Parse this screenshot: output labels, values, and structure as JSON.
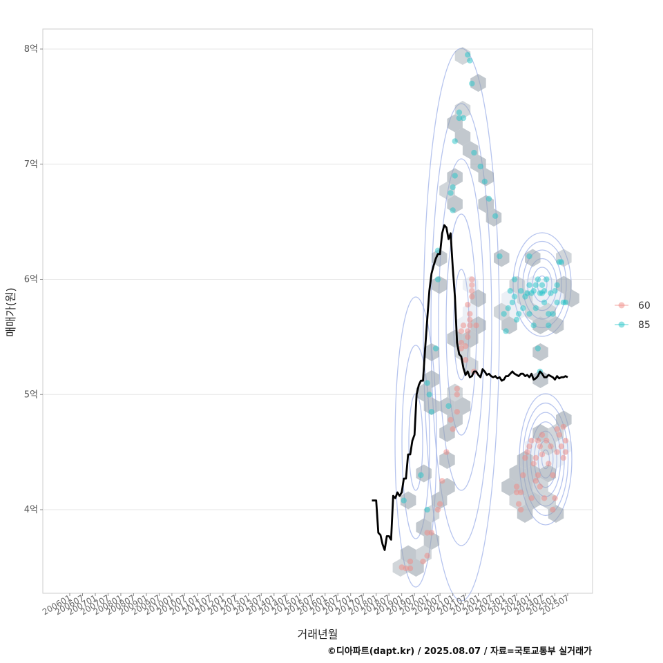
{
  "chart_data": {
    "type": "scatter",
    "title": "",
    "xlabel": "거래년월",
    "ylabel": "매매가(원)",
    "caption": "©디아파트(dapt.kr) / 2025.08.07 / 자료=국토교통부 실거래가",
    "x_ticks": [
      "200601",
      "200607",
      "200701",
      "200707",
      "200801",
      "200807",
      "200901",
      "200907",
      "201001",
      "201007",
      "201101",
      "201107",
      "201201",
      "201207",
      "201301",
      "201307",
      "201401",
      "201407",
      "201501",
      "201507",
      "201601",
      "201607",
      "201701",
      "201707",
      "201801",
      "201807",
      "201901",
      "201907",
      "202001",
      "202007",
      "202101",
      "202107",
      "202201",
      "202207",
      "202301",
      "202307",
      "202401",
      "202407",
      "202501",
      "202507"
    ],
    "y_ticks": [
      {
        "value": 4,
        "label": "4억"
      },
      {
        "value": 5,
        "label": "5억"
      },
      {
        "value": 6,
        "label": "6억"
      },
      {
        "value": 7,
        "label": "7억"
      },
      {
        "value": 8,
        "label": "8억"
      }
    ],
    "ylim": [
      3.3,
      8.17
    ],
    "grid": true,
    "legend_position": "right",
    "colors": {
      "s60": "#f08a84",
      "s85": "#22c4c8",
      "trend": "#000000",
      "contour": "#9db0e8",
      "hex": "#9aa3ad"
    },
    "series": [
      {
        "name": "60",
        "points": [
          [
            "201901",
            3.5
          ],
          [
            "201903",
            3.49
          ],
          [
            "201905",
            3.49
          ],
          [
            "201905",
            3.55
          ],
          [
            "201911",
            3.55
          ],
          [
            "202001",
            3.6
          ],
          [
            "202001",
            3.8
          ],
          [
            "202003",
            3.8
          ],
          [
            "202006",
            4.0
          ],
          [
            "202007",
            4.05
          ],
          [
            "202008",
            4.25
          ],
          [
            "202010",
            4.5
          ],
          [
            "202012",
            4.78
          ],
          [
            "202101",
            4.7
          ],
          [
            "202103",
            4.85
          ],
          [
            "202103",
            5.0
          ],
          [
            "202103",
            5.05
          ],
          [
            "202105",
            5.4
          ],
          [
            "202105",
            5.45
          ],
          [
            "202105",
            5.55
          ],
          [
            "202106",
            5.6
          ],
          [
            "202107",
            5.3
          ],
          [
            "202107",
            5.42
          ],
          [
            "202108",
            5.5
          ],
          [
            "202108",
            5.55
          ],
          [
            "202109",
            5.6
          ],
          [
            "202109",
            5.65
          ],
          [
            "202109",
            5.7
          ],
          [
            "202110",
            5.85
          ],
          [
            "202110",
            5.9
          ],
          [
            "202110",
            5.95
          ],
          [
            "202110",
            6.0
          ],
          [
            "202111",
            5.2
          ],
          [
            "202112",
            5.6
          ],
          [
            "202108",
            5.78
          ],
          [
            "202307",
            4.15
          ],
          [
            "202307",
            4.2
          ],
          [
            "202308",
            4.05
          ],
          [
            "202309",
            4.0
          ],
          [
            "202309",
            4.15
          ],
          [
            "202310",
            4.3
          ],
          [
            "202311",
            4.45
          ],
          [
            "202312",
            4.5
          ],
          [
            "202401",
            4.55
          ],
          [
            "202402",
            4.6
          ],
          [
            "202403",
            4.4
          ],
          [
            "202404",
            4.45
          ],
          [
            "202405",
            4.3
          ],
          [
            "202405",
            4.6
          ],
          [
            "202406",
            4.2
          ],
          [
            "202406",
            4.55
          ],
          [
            "202407",
            4.48
          ],
          [
            "202407",
            4.65
          ],
          [
            "202408",
            4.1
          ],
          [
            "202409",
            4.6
          ],
          [
            "202410",
            4.4
          ],
          [
            "202411",
            4.55
          ],
          [
            "202412",
            4.0
          ],
          [
            "202412",
            4.3
          ],
          [
            "202501",
            4.1
          ],
          [
            "202502",
            4.5
          ],
          [
            "202502",
            4.7
          ],
          [
            "202503",
            4.65
          ],
          [
            "202504",
            4.55
          ],
          [
            "202505",
            4.45
          ],
          [
            "202505",
            4.72
          ],
          [
            "202506",
            4.6
          ],
          [
            "202506",
            4.5
          ],
          [
            "202402",
            4.1
          ],
          [
            "202404",
            4.25
          ]
        ]
      },
      {
        "name": "85",
        "points": [
          [
            "201902",
            4.08
          ],
          [
            "201910",
            4.3
          ],
          [
            "202001",
            4.0
          ],
          [
            "202001",
            5.1
          ],
          [
            "202002",
            5.0
          ],
          [
            "202003",
            4.85
          ],
          [
            "202005",
            5.4
          ],
          [
            "202006",
            6.0
          ],
          [
            "202006",
            6.25
          ],
          [
            "202011",
            4.9
          ],
          [
            "202012",
            6.75
          ],
          [
            "202101",
            6.6
          ],
          [
            "202101",
            6.8
          ],
          [
            "202102",
            6.9
          ],
          [
            "202102",
            7.2
          ],
          [
            "202104",
            7.4
          ],
          [
            "202104",
            7.45
          ],
          [
            "202106",
            7.4
          ],
          [
            "202108",
            7.95
          ],
          [
            "202109",
            7.9
          ],
          [
            "202110",
            7.7
          ],
          [
            "202111",
            7.1
          ],
          [
            "202202",
            6.98
          ],
          [
            "202204",
            6.85
          ],
          [
            "202206",
            6.7
          ],
          [
            "202209",
            6.55
          ],
          [
            "202211",
            6.2
          ],
          [
            "202301",
            5.7
          ],
          [
            "202302",
            5.55
          ],
          [
            "202303",
            5.75
          ],
          [
            "202304",
            5.9
          ],
          [
            "202305",
            5.8
          ],
          [
            "202306",
            5.85
          ],
          [
            "202306",
            6.0
          ],
          [
            "202307",
            5.65
          ],
          [
            "202308",
            5.7
          ],
          [
            "202309",
            5.9
          ],
          [
            "202310",
            5.75
          ],
          [
            "202311",
            5.85
          ],
          [
            "202312",
            5.88
          ],
          [
            "202401",
            5.7
          ],
          [
            "202401",
            5.95
          ],
          [
            "202402",
            5.88
          ],
          [
            "202403",
            5.6
          ],
          [
            "202403",
            5.9
          ],
          [
            "202404",
            5.75
          ],
          [
            "202404",
            5.95
          ],
          [
            "202405",
            6.0
          ],
          [
            "202405",
            5.4
          ],
          [
            "202406",
            5.2
          ],
          [
            "202407",
            5.95
          ],
          [
            "202407",
            5.88
          ],
          [
            "202408",
            5.9
          ],
          [
            "202408",
            5.8
          ],
          [
            "202409",
            6.0
          ],
          [
            "202410",
            5.7
          ],
          [
            "202411",
            5.88
          ],
          [
            "202412",
            5.7
          ],
          [
            "202501",
            5.9
          ],
          [
            "202502",
            5.95
          ],
          [
            "202502",
            5.8
          ],
          [
            "202503",
            6.15
          ],
          [
            "202504",
            6.15
          ],
          [
            "202505",
            5.8
          ],
          [
            "202506",
            5.8
          ],
          [
            "202401",
            6.2
          ],
          [
            "202406",
            5.88
          ],
          [
            "202410",
            5.6
          ]
        ]
      }
    ],
    "trend": {
      "name": "",
      "x": [
        "201711",
        "201712",
        "201801",
        "201802",
        "201803",
        "201804",
        "201805",
        "201806",
        "201807",
        "201808",
        "201809",
        "201810",
        "201811",
        "201812",
        "201901",
        "201902",
        "201903",
        "201904",
        "201905",
        "201906",
        "201907",
        "201908",
        "201909",
        "201910",
        "201911",
        "201912",
        "202001",
        "202002",
        "202003",
        "202004",
        "202005",
        "202006",
        "202007",
        "202008",
        "202009",
        "202010",
        "202011",
        "202012",
        "202101",
        "202102",
        "202103",
        "202104",
        "202105",
        "202106",
        "202107",
        "202108",
        "202109",
        "202110",
        "202111",
        "202112",
        "202201",
        "202202",
        "202203",
        "202204",
        "202205",
        "202206",
        "202207",
        "202208",
        "202209",
        "202210",
        "202211",
        "202212",
        "202301",
        "202302",
        "202303",
        "202304",
        "202305",
        "202306",
        "202307",
        "202308",
        "202309",
        "202310",
        "202311",
        "202312",
        "202401",
        "202402",
        "202403",
        "202404",
        "202405",
        "202406",
        "202407",
        "202408",
        "202409",
        "202410",
        "202411",
        "202412",
        "202501",
        "202502",
        "202503",
        "202504",
        "202505",
        "202506",
        "202507"
      ],
      "y": [
        4.08,
        4.08,
        4.08,
        3.8,
        3.78,
        3.7,
        3.65,
        3.77,
        3.77,
        3.74,
        4.12,
        4.1,
        4.15,
        4.12,
        4.15,
        4.27,
        4.27,
        4.48,
        4.48,
        4.6,
        4.65,
        5.0,
        5.08,
        5.12,
        5.12,
        5.4,
        5.65,
        5.9,
        6.05,
        6.12,
        6.18,
        6.22,
        6.22,
        6.4,
        6.47,
        6.45,
        6.35,
        6.4,
        6.1,
        5.85,
        5.45,
        5.35,
        5.33,
        5.23,
        5.17,
        5.2,
        5.15,
        5.16,
        5.2,
        5.2,
        5.17,
        5.15,
        5.22,
        5.2,
        5.17,
        5.18,
        5.16,
        5.15,
        5.16,
        5.14,
        5.15,
        5.12,
        5.13,
        5.16,
        5.16,
        5.18,
        5.2,
        5.18,
        5.17,
        5.16,
        5.18,
        5.18,
        5.16,
        5.17,
        5.15,
        5.18,
        5.13,
        5.14,
        5.16,
        5.2,
        5.18,
        5.15,
        5.15,
        5.17,
        5.16,
        5.15,
        5.13,
        5.16,
        5.14,
        5.15,
        5.15,
        5.16,
        5.15
      ]
    }
  }
}
